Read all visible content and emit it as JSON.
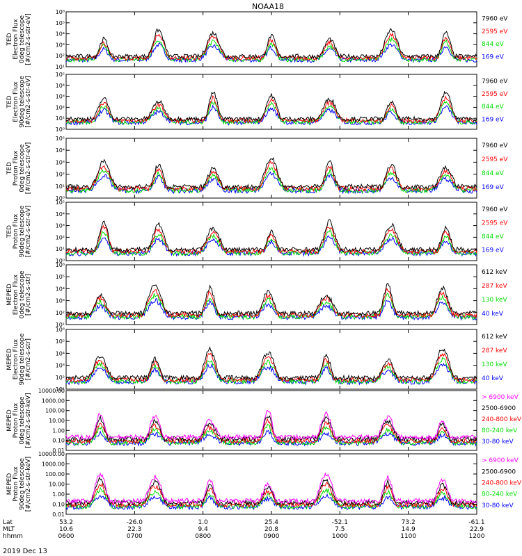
{
  "title": "NOAA18",
  "date_label": "2019 Dec 13",
  "colors": {
    "blue": "#0000ff",
    "red": "#ff0000",
    "green": "#00dd00",
    "black": "#000000",
    "magenta": "#ff00ff"
  },
  "x_axis": {
    "row_labels": [
      "Lat",
      "MLT",
      "hhmm"
    ],
    "ticks": [
      {
        "hhmm": "0600",
        "lat": "53.2",
        "mlt": "10.6"
      },
      {
        "hhmm": "0700",
        "lat": "-26.0",
        "mlt": "22.3"
      },
      {
        "hhmm": "0800",
        "lat": "1.0",
        "mlt": "9.4"
      },
      {
        "hhmm": "0900",
        "lat": "25.4",
        "mlt": "20.8"
      },
      {
        "hhmm": "1000",
        "lat": "-52.1",
        "mlt": "7.5"
      },
      {
        "hhmm": "1100",
        "lat": "73.2",
        "mlt": "14.9"
      },
      {
        "hhmm": "1200",
        "lat": "-61.1",
        "mlt": "22.9"
      }
    ]
  },
  "chart_data": [
    {
      "type": "line",
      "ylabel": [
        "TED",
        "Electron Flux",
        "0deg telescope",
        "[#/cm2-s-str-eV]"
      ],
      "ylim": [
        10,
        1000000
      ],
      "scale": "log",
      "yticks": [
        {
          "v": 10,
          "t": "10¹"
        },
        {
          "v": 100,
          "t": "10²"
        },
        {
          "v": 1000,
          "t": "10³"
        },
        {
          "v": 10000,
          "t": "10⁴"
        },
        {
          "v": 100000,
          "t": "10⁵"
        },
        {
          "v": 1000000,
          "t": "10⁶"
        }
      ],
      "legend": [
        {
          "t": "7960 eV",
          "c": "black"
        },
        {
          "t": "2595 eV",
          "c": "red"
        },
        {
          "t": "844 eV",
          "c": "green"
        },
        {
          "t": "169 eV",
          "c": "blue"
        }
      ]
    },
    {
      "type": "line",
      "ylabel": [
        "TED",
        "Electron Flux",
        "90deg telescope",
        "[#/cm2-s-str-eV]"
      ],
      "ylim": [
        1,
        100000
      ],
      "scale": "log",
      "yticks": [
        {
          "v": 1,
          "t": "10⁰"
        },
        {
          "v": 10,
          "t": "10¹"
        },
        {
          "v": 100,
          "t": "10²"
        },
        {
          "v": 1000,
          "t": "10³"
        },
        {
          "v": 10000,
          "t": "10⁴"
        },
        {
          "v": 100000,
          "t": "10⁵"
        }
      ],
      "legend": [
        {
          "t": "7960 eV",
          "c": "black"
        },
        {
          "t": "2595 eV",
          "c": "red"
        },
        {
          "t": "844 eV",
          "c": "green"
        },
        {
          "t": "169 eV",
          "c": "blue"
        }
      ]
    },
    {
      "type": "line",
      "ylabel": [
        "TED",
        "Proton Flux",
        "0deg telescope",
        "[#/cm2-s-str-eV]"
      ],
      "ylim": [
        1,
        100000
      ],
      "scale": "log",
      "yticks": [
        {
          "v": 1,
          "t": "10⁰"
        },
        {
          "v": 10,
          "t": "10¹"
        },
        {
          "v": 100,
          "t": "10²"
        },
        {
          "v": 1000,
          "t": "10³"
        },
        {
          "v": 10000,
          "t": "10⁴"
        },
        {
          "v": 100000,
          "t": "10⁵"
        }
      ],
      "legend": [
        {
          "t": "7960 eV",
          "c": "black"
        },
        {
          "t": "2595 eV",
          "c": "red"
        },
        {
          "t": "844 eV",
          "c": "green"
        },
        {
          "t": "169 eV",
          "c": "blue"
        }
      ]
    },
    {
      "type": "line",
      "ylabel": [
        "TED",
        "Proton Flux",
        "90deg telescope",
        "[#/cm2-s-str-eV]"
      ],
      "ylim": [
        1,
        100000
      ],
      "scale": "log",
      "yticks": [
        {
          "v": 1,
          "t": "10⁰"
        },
        {
          "v": 10,
          "t": "10¹"
        },
        {
          "v": 100,
          "t": "10²"
        },
        {
          "v": 1000,
          "t": "10³"
        },
        {
          "v": 10000,
          "t": "10⁴"
        },
        {
          "v": 100000,
          "t": "10⁵"
        }
      ],
      "legend": [
        {
          "t": "7960 eV",
          "c": "black"
        },
        {
          "t": "2595 eV",
          "c": "red"
        },
        {
          "t": "844 eV",
          "c": "green"
        },
        {
          "t": "169 eV",
          "c": "blue"
        }
      ]
    },
    {
      "type": "line",
      "ylabel": [
        "MEPED",
        "Electron Flux",
        "0deg telescope",
        "[#/cm2-s-str]"
      ],
      "ylim": [
        10,
        1000000
      ],
      "scale": "log",
      "yticks": [
        {
          "v": 10,
          "t": "10¹"
        },
        {
          "v": 100,
          "t": "10²"
        },
        {
          "v": 1000,
          "t": "10³"
        },
        {
          "v": 10000,
          "t": "10⁴"
        },
        {
          "v": 100000,
          "t": "10⁵"
        },
        {
          "v": 1000000,
          "t": "10⁶"
        }
      ],
      "legend": [
        {
          "t": "612 keV",
          "c": "black"
        },
        {
          "t": "287 keV",
          "c": "red"
        },
        {
          "t": "130 keV",
          "c": "green"
        },
        {
          "t": "40 keV",
          "c": "blue"
        }
      ]
    },
    {
      "type": "line",
      "ylabel": [
        "MEPED",
        "Electron Flux",
        "90deg telescope",
        "[#/cm2-s-str]"
      ],
      "ylim": [
        10,
        1000000
      ],
      "scale": "log",
      "yticks": [
        {
          "v": 10,
          "t": "10¹"
        },
        {
          "v": 100,
          "t": "10²"
        },
        {
          "v": 1000,
          "t": "10³"
        },
        {
          "v": 10000,
          "t": "10⁴"
        },
        {
          "v": 100000,
          "t": "10⁵"
        },
        {
          "v": 1000000,
          "t": "10⁶"
        }
      ],
      "legend": [
        {
          "t": "612 keV",
          "c": "black"
        },
        {
          "t": "287 keV",
          "c": "red"
        },
        {
          "t": "130 keV",
          "c": "green"
        },
        {
          "t": "40 keV",
          "c": "blue"
        }
      ]
    },
    {
      "type": "line",
      "ylabel": [
        "MEPED",
        "Proton Flux",
        "0deg telescope",
        "[#/cm2-s-str-keV]"
      ],
      "ylim": [
        0.01,
        10000
      ],
      "scale": "log",
      "yticks": [
        {
          "v": 0.01,
          "t": "0.01"
        },
        {
          "v": 0.1,
          "t": "0.10"
        },
        {
          "v": 1,
          "t": "1.00"
        },
        {
          "v": 10,
          "t": "10.00"
        },
        {
          "v": 100,
          "t": "100.00"
        },
        {
          "v": 1000,
          "t": "1000.00"
        },
        {
          "v": 10000,
          "t": "10000.00"
        }
      ],
      "legend": [
        {
          "t": "> 6900 keV",
          "c": "magenta"
        },
        {
          "t": "2500-6900",
          "c": "black"
        },
        {
          "t": "240-800 keV",
          "c": "red"
        },
        {
          "t": "80-240 keV",
          "c": "green"
        },
        {
          "t": "30-80 keV",
          "c": "blue"
        }
      ]
    },
    {
      "type": "line",
      "ylabel": [
        "MEPED",
        "Proton Flux",
        "90deg telescope",
        "[#/cm2-s-str-keV]"
      ],
      "ylim": [
        0.01,
        10000
      ],
      "scale": "log",
      "yticks": [
        {
          "v": 0.01,
          "t": "0.01"
        },
        {
          "v": 0.1,
          "t": "0.10"
        },
        {
          "v": 1,
          "t": "1.00"
        },
        {
          "v": 10,
          "t": "10.00"
        },
        {
          "v": 100,
          "t": "100.00"
        },
        {
          "v": 1000,
          "t": "1000.00"
        },
        {
          "v": 10000,
          "t": "10000.00"
        }
      ],
      "legend": [
        {
          "t": "> 6900 keV",
          "c": "magenta"
        },
        {
          "t": "2500-6900",
          "c": "black"
        },
        {
          "t": "240-800 keV",
          "c": "red"
        },
        {
          "t": "80-240 keV",
          "c": "green"
        },
        {
          "t": "30-80 keV",
          "c": "blue"
        }
      ]
    }
  ]
}
